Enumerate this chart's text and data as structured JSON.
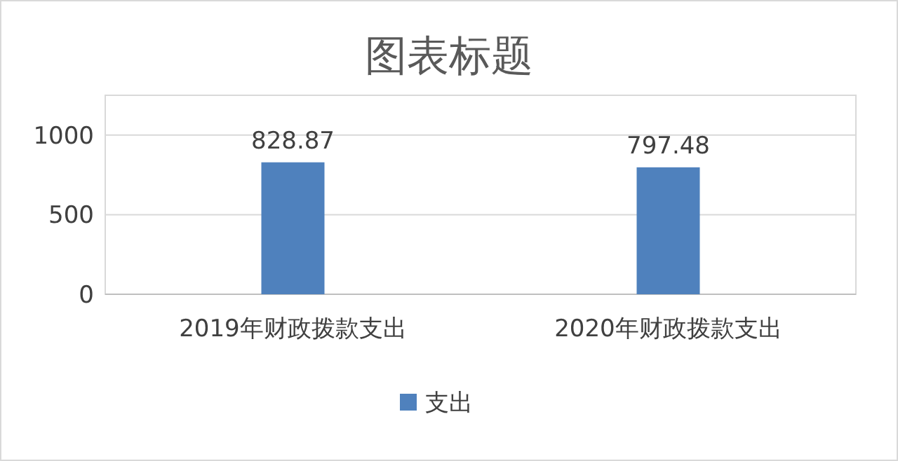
{
  "chart_data": {
    "type": "bar",
    "title": "图表标题",
    "categories": [
      "2019年财政拨款支出",
      "2020年财政拨款支出"
    ],
    "series": [
      {
        "name": "支出",
        "color": "#4f81bd",
        "values": [
          828.87,
          797.48
        ]
      }
    ],
    "ylim": [
      0,
      1250
    ],
    "yticks": [
      0,
      500,
      1000
    ],
    "grid": "y",
    "legend": "bottom",
    "data_labels": true
  }
}
